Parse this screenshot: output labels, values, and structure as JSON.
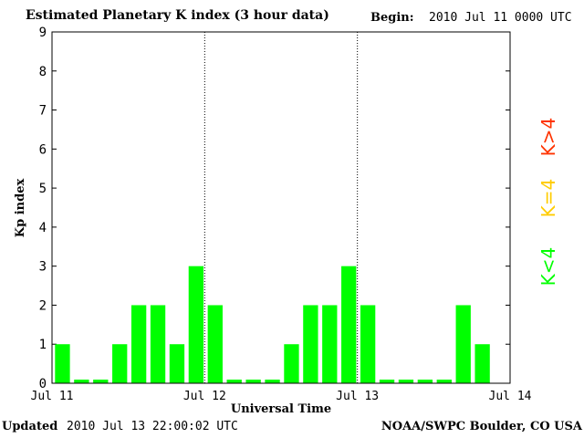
{
  "header": {
    "title": "Estimated Planetary K index (3 hour data)",
    "begin_label": "Begin:",
    "begin_value": "2010 Jul 11 0000 UTC"
  },
  "footer": {
    "updated_label": "Updated",
    "updated_value": "2010 Jul 13 22:00:02 UTC",
    "credit": "NOAA/SWPC Boulder, CO USA"
  },
  "legend": {
    "high": {
      "label": "K>4",
      "color": "#ff3300"
    },
    "equal": {
      "label": "K=4",
      "color": "#ffcc00"
    },
    "low": {
      "label": "K<4",
      "color": "#00ff00"
    }
  },
  "chart_data": {
    "type": "bar",
    "title": "Estimated Planetary K index (3 hour data)",
    "xlabel": "Universal Time",
    "ylabel": "Kp index",
    "ylim": [
      0,
      9
    ],
    "yticks": [
      0,
      1,
      2,
      3,
      4,
      5,
      6,
      7,
      8,
      9
    ],
    "xtick_labels": [
      "Jul 11",
      "Jul 12",
      "Jul 13",
      "Jul 14"
    ],
    "bar_color": "#00ff00",
    "day_separators": true,
    "series": [
      {
        "values": [
          1,
          0,
          0,
          1,
          2,
          2,
          1,
          3,
          2,
          0,
          0,
          0,
          1,
          2,
          2,
          3,
          2,
          0,
          0,
          0,
          0,
          2,
          1
        ]
      }
    ]
  }
}
